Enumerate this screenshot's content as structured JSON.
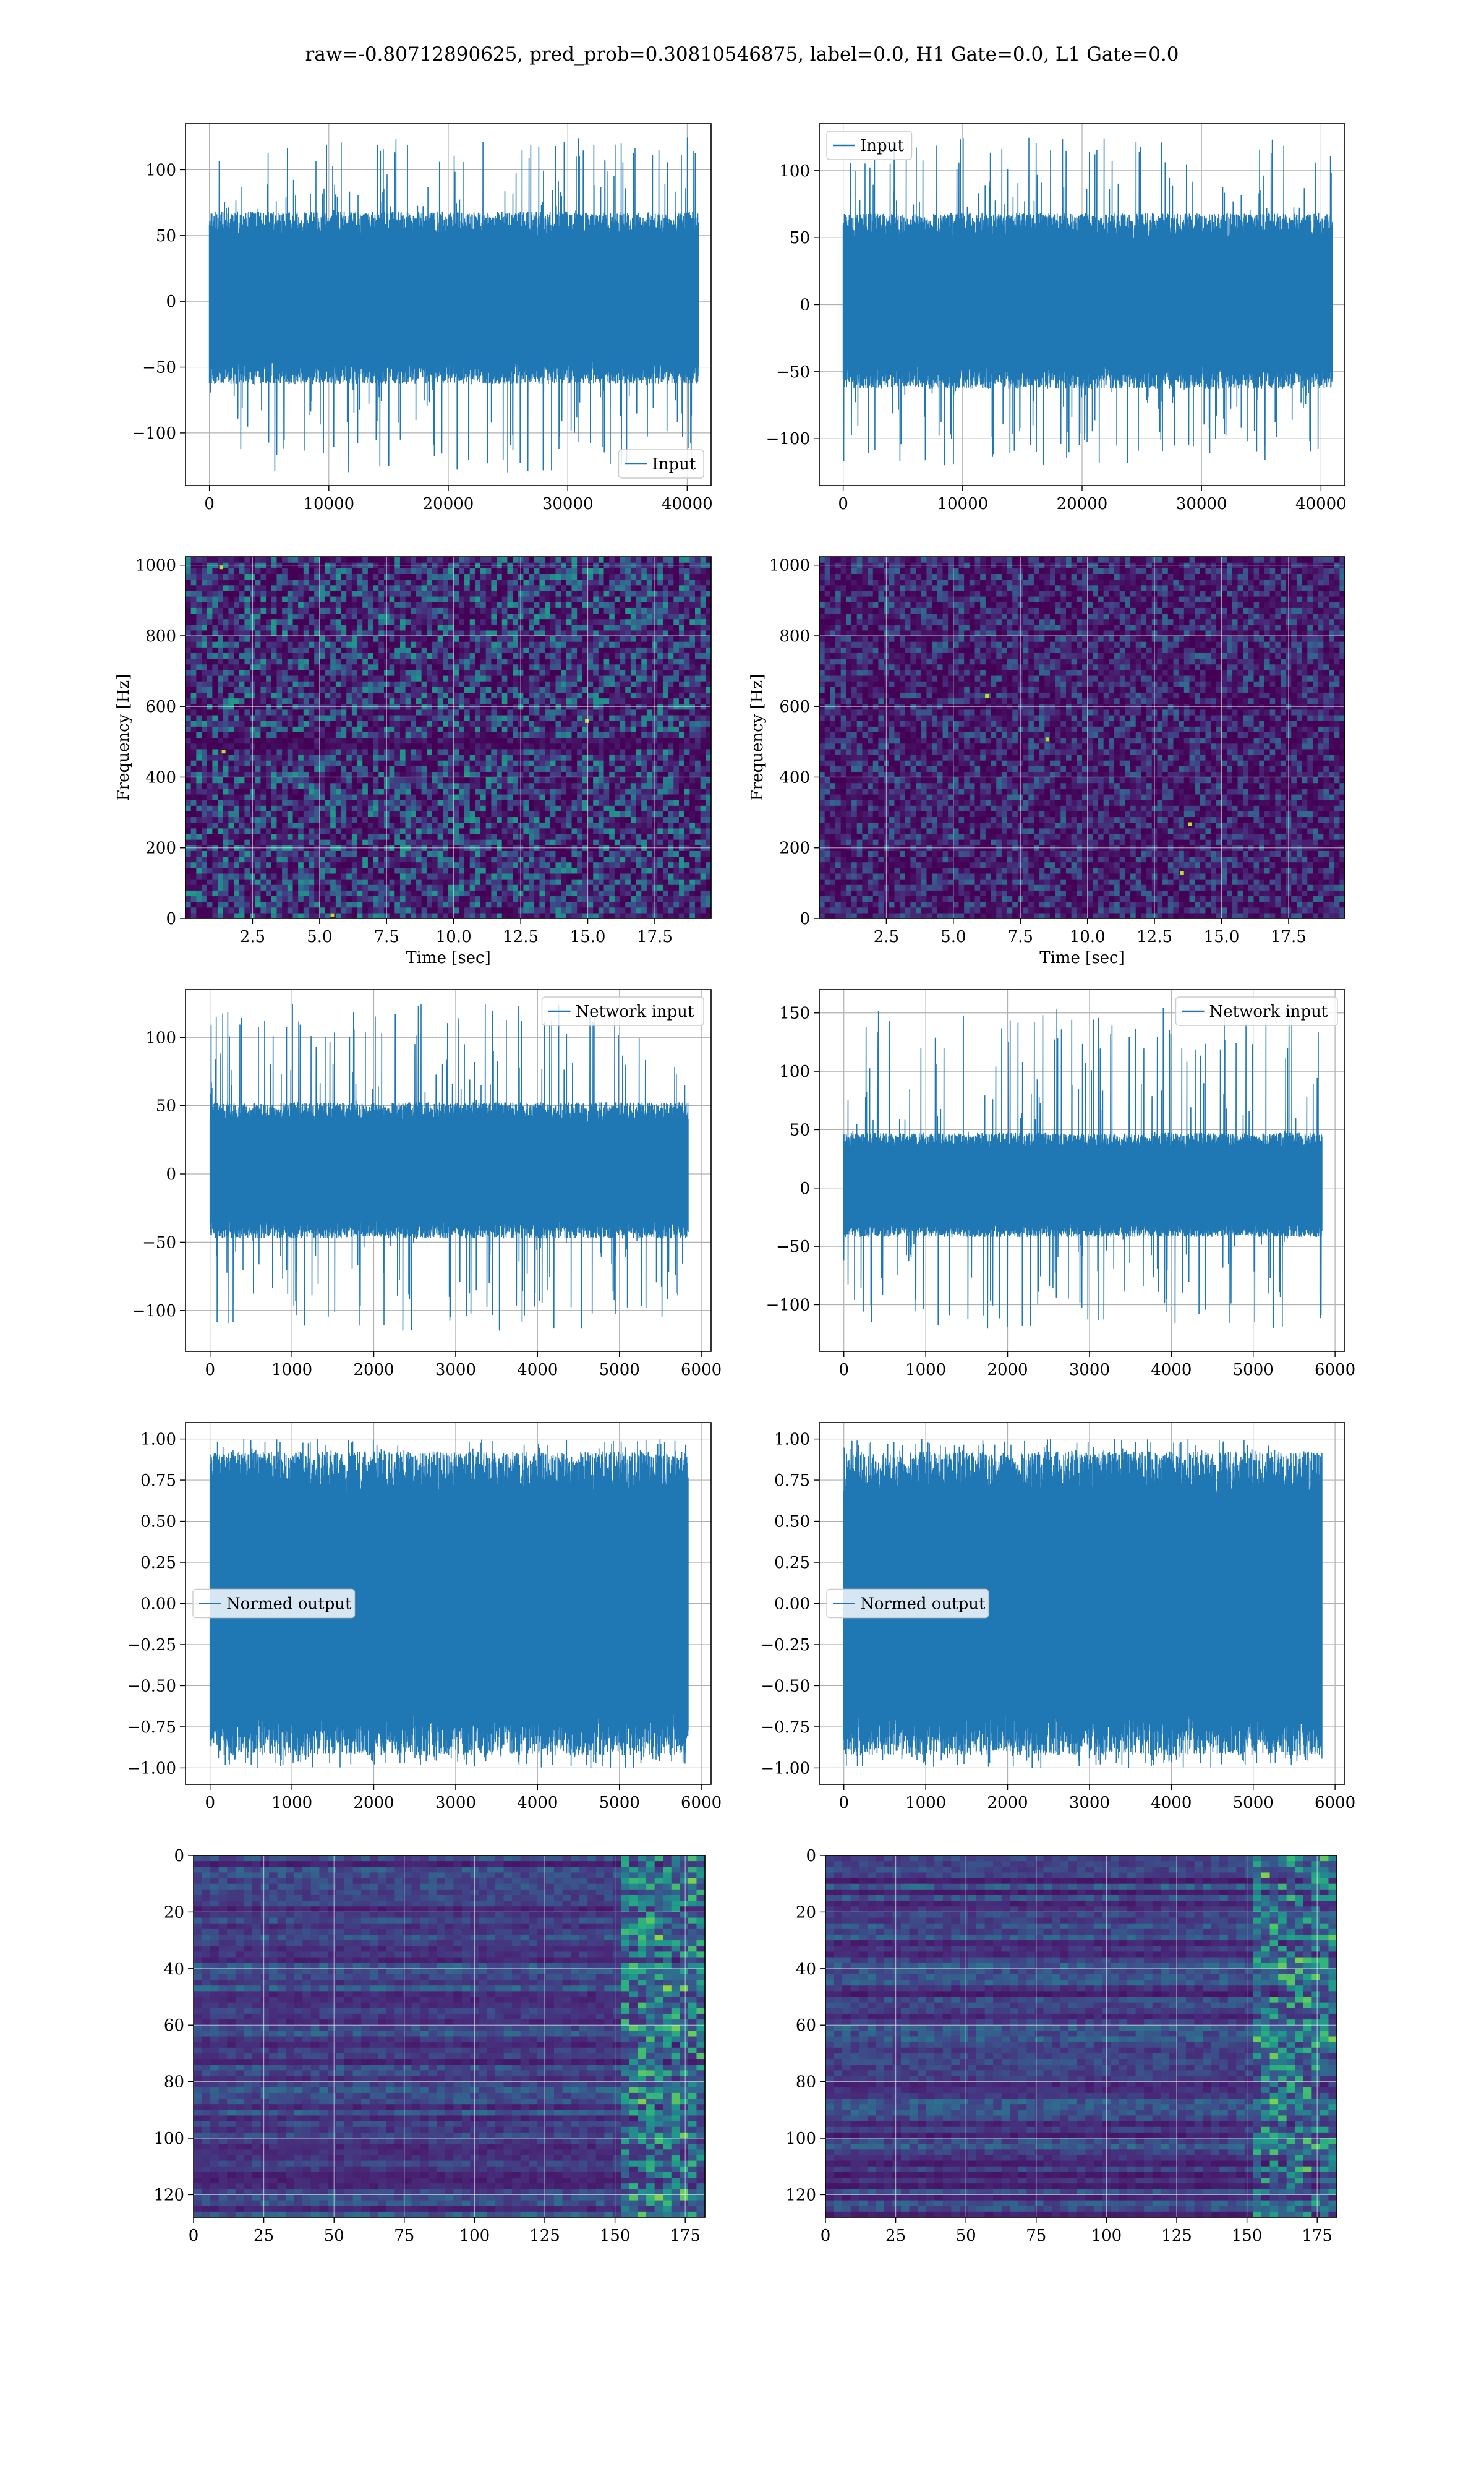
{
  "figure": {
    "title": "raw=-0.80712890625, pred_prob=0.30810546875, label=0.0, H1 Gate=0.0, L1 Gate=0.0"
  },
  "colors": {
    "line": "#1f77b4",
    "grid": "#b0b0b0",
    "viridis_low": "#440154",
    "viridis_mid": "#21918c",
    "viridis_high": "#fde725"
  },
  "chart_data": [
    {
      "id": "input-h1",
      "type": "line",
      "legend": [
        "Input"
      ],
      "legend_position": "lower-right",
      "xlim": [
        -2000,
        42000
      ],
      "ylim": [
        -140,
        135
      ],
      "xticks": [
        0,
        10000,
        20000,
        30000,
        40000
      ],
      "xtick_labels": [
        "0",
        "10000",
        "20000",
        "30000",
        "40000"
      ],
      "yticks": [
        -100,
        -50,
        0,
        50,
        100
      ],
      "ytick_labels": [
        "−100",
        "−50",
        "0",
        "50",
        "100"
      ],
      "x_range": [
        0,
        40960
      ],
      "typical_band": [
        -60,
        65
      ],
      "max_excursion": [
        -130,
        125
      ],
      "grid": true
    },
    {
      "id": "input-l1",
      "type": "line",
      "legend": [
        "Input"
      ],
      "legend_position": "upper-left",
      "xlim": [
        -2000,
        42000
      ],
      "ylim": [
        -135,
        135
      ],
      "xticks": [
        0,
        10000,
        20000,
        30000,
        40000
      ],
      "xtick_labels": [
        "0",
        "10000",
        "20000",
        "30000",
        "40000"
      ],
      "yticks": [
        -100,
        -50,
        0,
        50,
        100
      ],
      "ytick_labels": [
        "−100",
        "−50",
        "0",
        "50",
        "100"
      ],
      "x_range": [
        0,
        40960
      ],
      "typical_band": [
        -60,
        65
      ],
      "max_excursion": [
        -120,
        125
      ],
      "grid": true
    },
    {
      "id": "spec-h1",
      "type": "heatmap",
      "xlabel": "Time [sec]",
      "ylabel": "Frequency [Hz]",
      "xlim": [
        0,
        19.6
      ],
      "ylim": [
        0,
        1024
      ],
      "xticks": [
        2.5,
        5.0,
        7.5,
        10.0,
        12.5,
        15.0,
        17.5
      ],
      "xtick_labels": [
        "2.5",
        "5.0",
        "7.5",
        "10.0",
        "12.5",
        "15.0",
        "17.5"
      ],
      "yticks": [
        0,
        200,
        400,
        600,
        800,
        1000
      ],
      "ytick_labels": [
        "0",
        "200",
        "400",
        "600",
        "800",
        "1000"
      ],
      "colormap": "viridis",
      "intensity": 0.34,
      "dark_band_hz": 500,
      "grid": true
    },
    {
      "id": "spec-l1",
      "type": "heatmap",
      "xlabel": "Time [sec]",
      "ylabel": "Frequency [Hz]",
      "xlim": [
        0,
        19.6
      ],
      "ylim": [
        0,
        1024
      ],
      "xticks": [
        2.5,
        5.0,
        7.5,
        10.0,
        12.5,
        15.0,
        17.5
      ],
      "xtick_labels": [
        "2.5",
        "5.0",
        "7.5",
        "10.0",
        "12.5",
        "15.0",
        "17.5"
      ],
      "yticks": [
        0,
        200,
        400,
        600,
        800,
        1000
      ],
      "ytick_labels": [
        "0",
        "200",
        "400",
        "600",
        "800",
        "1000"
      ],
      "colormap": "viridis",
      "intensity": 0.22,
      "grid": true
    },
    {
      "id": "netin-h1",
      "type": "line",
      "legend": [
        "Network input"
      ],
      "legend_position": "upper-right",
      "xlim": [
        -300,
        6120
      ],
      "ylim": [
        -130,
        135
      ],
      "xticks": [
        0,
        1000,
        2000,
        3000,
        4000,
        5000,
        6000
      ],
      "xtick_labels": [
        "0",
        "1000",
        "2000",
        "3000",
        "4000",
        "5000",
        "6000"
      ],
      "yticks": [
        -100,
        -50,
        0,
        50,
        100
      ],
      "ytick_labels": [
        "−100",
        "−50",
        "0",
        "50",
        "100"
      ],
      "x_range": [
        0,
        5840
      ],
      "typical_band": [
        -45,
        50
      ],
      "max_excursion": [
        -115,
        125
      ],
      "grid": true
    },
    {
      "id": "netin-l1",
      "type": "line",
      "legend": [
        "Network input"
      ],
      "legend_position": "upper-right",
      "xlim": [
        -300,
        6120
      ],
      "ylim": [
        -140,
        170
      ],
      "xticks": [
        0,
        1000,
        2000,
        3000,
        4000,
        5000,
        6000
      ],
      "xtick_labels": [
        "0",
        "1000",
        "2000",
        "3000",
        "4000",
        "5000",
        "6000"
      ],
      "yticks": [
        -100,
        -50,
        0,
        50,
        100,
        150
      ],
      "ytick_labels": [
        "−100",
        "−50",
        "0",
        "50",
        "100",
        "150"
      ],
      "x_range": [
        0,
        5840
      ],
      "typical_band": [
        -40,
        45
      ],
      "max_excursion": [
        -120,
        155
      ],
      "grid": true
    },
    {
      "id": "normout-h1",
      "type": "line",
      "legend": [
        "Normed output"
      ],
      "legend_position": "center-left",
      "xlim": [
        -300,
        6120
      ],
      "ylim": [
        -1.1,
        1.1
      ],
      "xticks": [
        0,
        1000,
        2000,
        3000,
        4000,
        5000,
        6000
      ],
      "xtick_labels": [
        "0",
        "1000",
        "2000",
        "3000",
        "4000",
        "5000",
        "6000"
      ],
      "yticks": [
        -1.0,
        -0.75,
        -0.5,
        -0.25,
        0.0,
        0.25,
        0.5,
        0.75,
        1.0
      ],
      "ytick_labels": [
        "−1.00",
        "−0.75",
        "−0.50",
        "−0.25",
        "0.00",
        "0.25",
        "0.50",
        "0.75",
        "1.00"
      ],
      "x_range": [
        0,
        5840
      ],
      "typical_band": [
        -0.88,
        0.88
      ],
      "max_excursion": [
        -1.0,
        1.0
      ],
      "grid": true
    },
    {
      "id": "normout-l1",
      "type": "line",
      "legend": [
        "Normed output"
      ],
      "legend_position": "center-left",
      "xlim": [
        -300,
        6120
      ],
      "ylim": [
        -1.1,
        1.1
      ],
      "xticks": [
        0,
        1000,
        2000,
        3000,
        4000,
        5000,
        6000
      ],
      "xtick_labels": [
        "0",
        "1000",
        "2000",
        "3000",
        "4000",
        "5000",
        "6000"
      ],
      "yticks": [
        -1.0,
        -0.75,
        -0.5,
        -0.25,
        0.0,
        0.25,
        0.5,
        0.75,
        1.0
      ],
      "ytick_labels": [
        "−1.00",
        "−0.75",
        "−0.50",
        "−0.25",
        "0.00",
        "0.25",
        "0.50",
        "0.75",
        "1.00"
      ],
      "x_range": [
        0,
        5840
      ],
      "typical_band": [
        -0.88,
        0.88
      ],
      "max_excursion": [
        -1.0,
        1.0
      ],
      "grid": true
    },
    {
      "id": "feat-h1",
      "type": "heatmap",
      "xlim": [
        0,
        182
      ],
      "ylim": [
        128,
        0
      ],
      "xticks": [
        0,
        25,
        50,
        75,
        100,
        125,
        150,
        175
      ],
      "xtick_labels": [
        "0",
        "25",
        "50",
        "75",
        "100",
        "125",
        "150",
        "175"
      ],
      "yticks": [
        0,
        20,
        40,
        60,
        80,
        100,
        120
      ],
      "ytick_labels": [
        "0",
        "20",
        "40",
        "60",
        "80",
        "100",
        "120"
      ],
      "rows": 128,
      "cols": 182,
      "colormap": "viridis",
      "bright_from_col": 150,
      "grid": true
    },
    {
      "id": "feat-l1",
      "type": "heatmap",
      "xlim": [
        0,
        182
      ],
      "ylim": [
        128,
        0
      ],
      "xticks": [
        0,
        25,
        50,
        75,
        100,
        125,
        150,
        175
      ],
      "xtick_labels": [
        "0",
        "25",
        "50",
        "75",
        "100",
        "125",
        "150",
        "175"
      ],
      "yticks": [
        0,
        20,
        40,
        60,
        80,
        100,
        120
      ],
      "ytick_labels": [
        "0",
        "20",
        "40",
        "60",
        "80",
        "100",
        "120"
      ],
      "rows": 128,
      "cols": 182,
      "colormap": "viridis",
      "bright_from_col": 150,
      "grid": true
    }
  ]
}
